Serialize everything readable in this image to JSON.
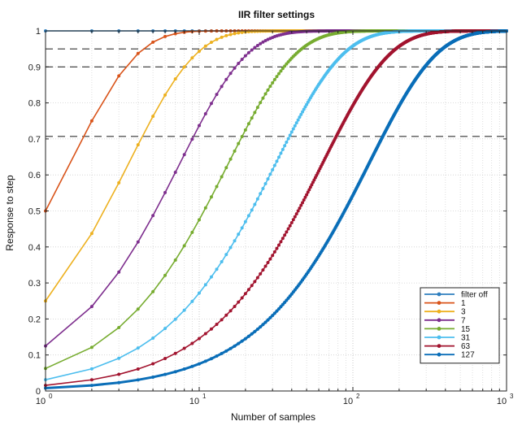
{
  "chart_data": {
    "type": "line",
    "title": "IIR filter settings",
    "xlabel": "Number of samples",
    "ylabel": "Response to step",
    "xscale": "log",
    "xlim": [
      1,
      1000
    ],
    "ylim": [
      0,
      1
    ],
    "x_ticks": [
      {
        "value": 1,
        "base": "10",
        "exp": "0"
      },
      {
        "value": 10,
        "base": "10",
        "exp": "1"
      },
      {
        "value": 100,
        "base": "10",
        "exp": "2"
      },
      {
        "value": 1000,
        "base": "10",
        "exp": "3"
      }
    ],
    "y_ticks": [
      "0",
      "0.1",
      "0.2",
      "0.3",
      "0.4",
      "0.5",
      "0.6",
      "0.7",
      "0.8",
      "0.9",
      "1"
    ],
    "grid": true,
    "reference_lines": [
      1.0,
      0.95,
      0.9,
      0.707
    ],
    "legend_position": "bottom-right",
    "x_samples": "integer sample counts from 1 to 1000",
    "series": [
      {
        "name": "filter off",
        "filter_length": 0,
        "color": "#2f7fbf"
      },
      {
        "name": "1",
        "filter_length": 1,
        "color": "#d9541a"
      },
      {
        "name": "3",
        "filter_length": 3,
        "color": "#edb120"
      },
      {
        "name": "7",
        "filter_length": 7,
        "color": "#7e2f8e"
      },
      {
        "name": "15",
        "filter_length": 15,
        "color": "#77ac30"
      },
      {
        "name": "31",
        "filter_length": 31,
        "color": "#4dbeee"
      },
      {
        "name": "63",
        "filter_length": 63,
        "color": "#a2142f"
      },
      {
        "name": "127",
        "filter_length": 127,
        "color": "#0a6eb8"
      }
    ]
  }
}
